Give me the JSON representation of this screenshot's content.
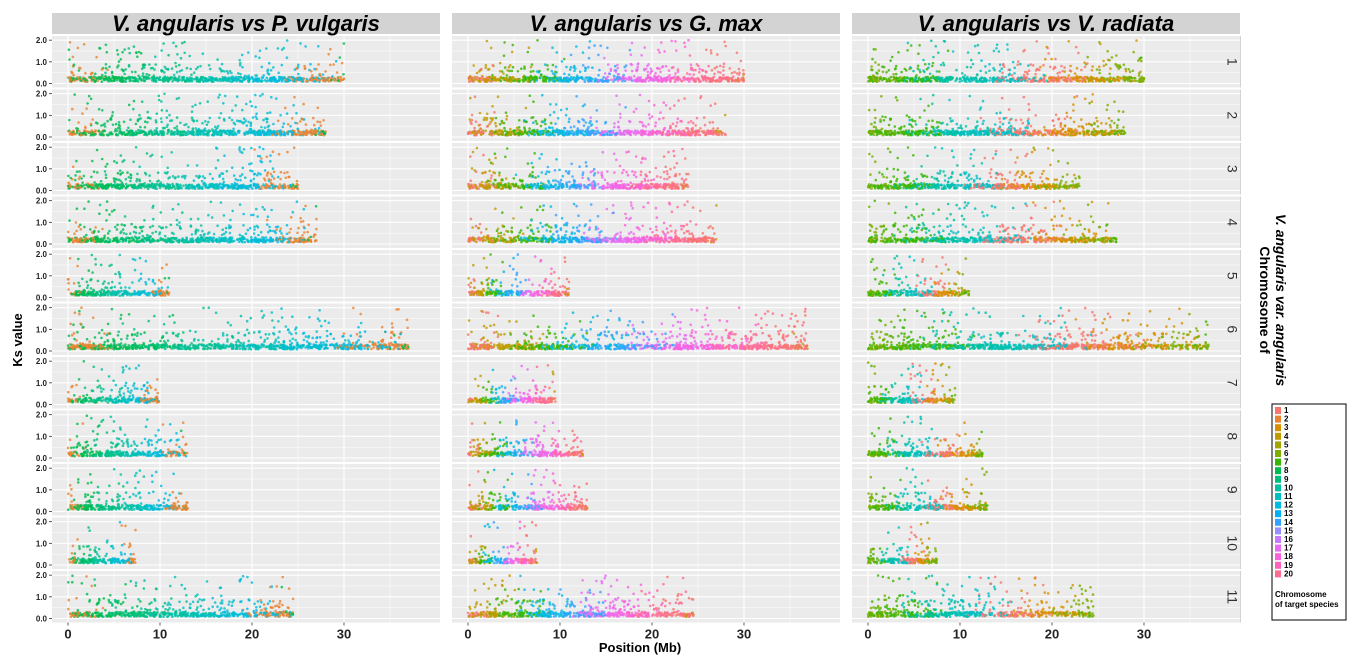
{
  "chart_data": {
    "type": "scatter",
    "title": "",
    "xlabel": "Position (Mb)",
    "ylabel": "Ks value",
    "xlim": [
      0,
      40
    ],
    "ylim": [
      0,
      2.1
    ],
    "x_ticks": [
      "0",
      "10",
      "20",
      "30"
    ],
    "y_ticks": [
      "0.0",
      "1.0",
      "2.0"
    ],
    "grid": true,
    "facet_columns": [
      {
        "title_italic_a": "V. angularis",
        "title_sep": " vs ",
        "title_italic_b": "P. vulgaris",
        "chr_lengths_mb": [
          30,
          28,
          25,
          27,
          11,
          37,
          10,
          13,
          13,
          7.5,
          24.5
        ]
      },
      {
        "title_italic_a": "V. angularis",
        "title_sep": " vs ",
        "title_italic_b": "G. max",
        "chr_lengths_mb": [
          30,
          28,
          24,
          27,
          11,
          37,
          9.5,
          12.5,
          13,
          7.5,
          24.5
        ]
      },
      {
        "title_italic_a": "V. angularis",
        "title_sep": " vs ",
        "title_italic_b": "V. radiata",
        "chr_lengths_mb": [
          30,
          28,
          23,
          27,
          11,
          37,
          9.5,
          12.5,
          13,
          7.5,
          24.5
        ]
      }
    ],
    "facet_rows": [
      "1",
      "2",
      "3",
      "4",
      "5",
      "6",
      "7",
      "8",
      "9",
      "10",
      "11"
    ],
    "row_strip_title_line1": "Chromosome of",
    "row_strip_title_line2": "V. angularis var. angularis",
    "legend": {
      "title_line1": "Chromosome",
      "title_line2": "of target species",
      "placement": "right",
      "entries": [
        "1",
        "2",
        "3",
        "4",
        "5",
        "6",
        "7",
        "8",
        "9",
        "10",
        "11",
        "12",
        "13",
        "14",
        "15",
        "16",
        "17",
        "18",
        "19",
        "20"
      ],
      "colors": [
        "#F8766D",
        "#EA8331",
        "#D89000",
        "#C09B00",
        "#A3A500",
        "#7CAE00",
        "#39B600",
        "#00BB4E",
        "#00BF7D",
        "#00C1A3",
        "#00BFC4",
        "#00BAE0",
        "#00B0F6",
        "#35A2FF",
        "#9590FF",
        "#C77CFF",
        "#E76BF3",
        "#FA62DB",
        "#FF62BC",
        "#FF6C91"
      ]
    },
    "points_generated_per_panel": "dense Ks points per chromosome position; most near 0.1–0.3 with scattered points up to 2.0"
  }
}
